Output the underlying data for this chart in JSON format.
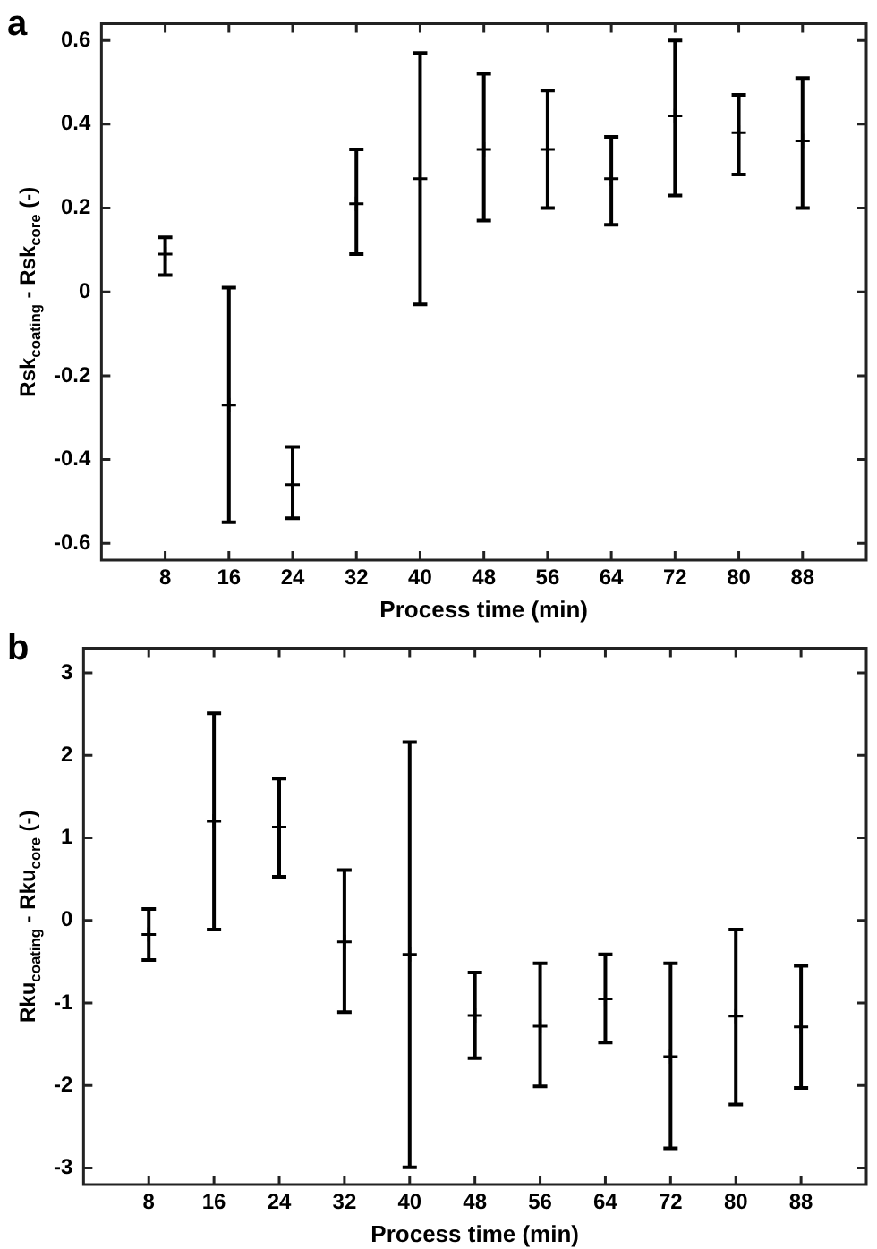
{
  "chart_data": [
    {
      "type": "scatter",
      "title": "a",
      "xlabel": "Process time (min)",
      "ylabel": "Rsk$_{coating}$ - Rsk$_{core}$ (-)",
      "x": [
        8,
        16,
        24,
        32,
        40,
        48,
        56,
        64,
        72,
        80,
        88
      ],
      "marker": "cross",
      "grid": false,
      "legend": false,
      "series": [
        {
          "color": "#000000",
          "values": [
            0.09,
            -0.27,
            -0.46,
            0.21,
            0.27,
            0.34,
            0.34,
            0.27,
            0.42,
            0.38,
            0.36
          ],
          "errors": [
            [
              0.04,
              0.13
            ],
            [
              -0.55,
              0.01
            ],
            [
              -0.54,
              -0.37
            ],
            [
              0.09,
              0.34
            ],
            [
              -0.03,
              0.57
            ],
            [
              0.17,
              0.52
            ],
            [
              0.2,
              0.48
            ],
            [
              0.16,
              0.37
            ],
            [
              0.23,
              0.6
            ],
            [
              0.28,
              0.47
            ],
            [
              0.2,
              0.51
            ]
          ]
        }
      ],
      "xlim": [
        0,
        96
      ],
      "xticks": [
        8,
        16,
        24,
        32,
        40,
        48,
        56,
        64,
        72,
        80,
        88
      ],
      "ylim": [
        -0.64,
        0.64
      ],
      "yticks": [
        -0.6,
        -0.4,
        -0.2,
        0,
        0.2,
        0.4,
        0.6
      ]
    },
    {
      "type": "scatter",
      "title": "b",
      "xlabel": "Process time (min)",
      "ylabel": "Rku$_{coating}$ - Rku$_{core}$ (-)",
      "x": [
        8,
        16,
        24,
        32,
        40,
        48,
        56,
        64,
        72,
        80,
        88
      ],
      "marker": "cross",
      "grid": false,
      "legend": false,
      "series": [
        {
          "color": "#000000",
          "values": [
            -0.17,
            1.2,
            1.13,
            -0.26,
            -0.41,
            -1.15,
            -1.28,
            -0.95,
            -1.65,
            -1.16,
            -1.29
          ],
          "errors": [
            [
              -0.48,
              0.14
            ],
            [
              -0.11,
              2.51
            ],
            [
              0.53,
              1.72
            ],
            [
              -1.11,
              0.61
            ],
            [
              -2.99,
              2.16
            ],
            [
              -1.67,
              -0.63
            ],
            [
              -2.01,
              -0.52
            ],
            [
              -1.48,
              -0.41
            ],
            [
              -2.76,
              -0.52
            ],
            [
              -2.23,
              -0.11
            ],
            [
              -2.03,
              -0.55
            ]
          ]
        }
      ],
      "xlim": [
        0,
        96
      ],
      "xticks": [
        8,
        16,
        24,
        32,
        40,
        48,
        56,
        64,
        72,
        80,
        88
      ],
      "ylim": [
        -3.2,
        3.3
      ],
      "yticks": [
        -3,
        -2,
        -1,
        0,
        1,
        2,
        3
      ]
    }
  ]
}
